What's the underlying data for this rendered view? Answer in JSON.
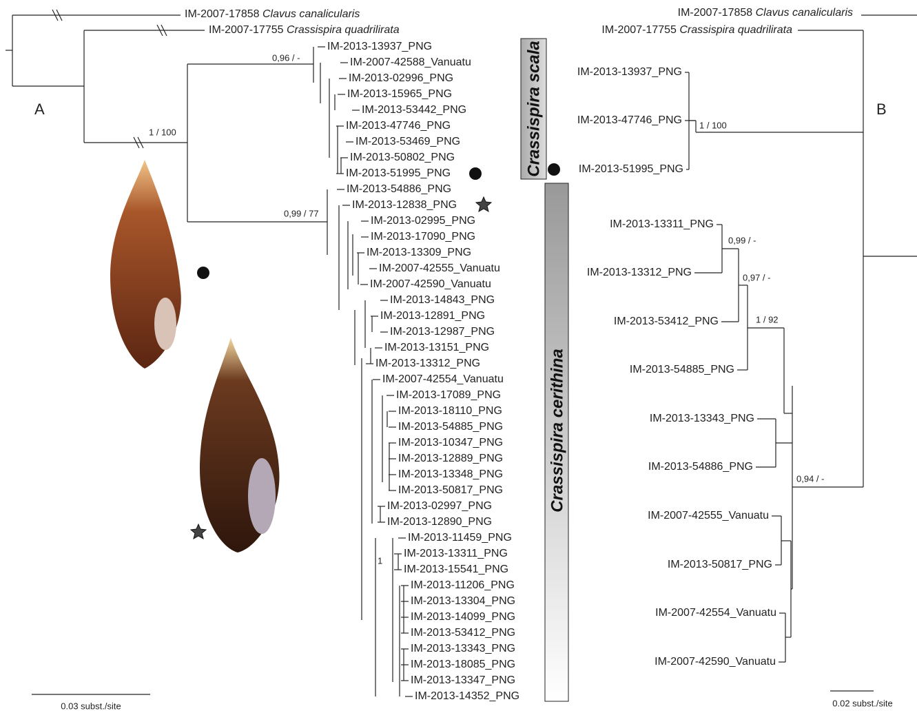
{
  "tree_a": {
    "label": "A",
    "outgroups": [
      {
        "id": "IM-2007-17858",
        "species": "Clavus canalicularis"
      },
      {
        "id": "IM-2007-17755",
        "species": "Crassispira quadrilirata"
      }
    ],
    "tips": [
      "IM-2013-13937_PNG",
      "IM-2007-42588_Vanuatu",
      "IM-2013-02996_PNG",
      "IM-2013-15965_PNG",
      "IM-2013-53442_PNG",
      "IM-2013-47746_PNG",
      "IM-2013-53469_PNG",
      "IM-2013-50802_PNG",
      "IM-2013-51995_PNG",
      "IM-2013-54886_PNG",
      "IM-2013-12838_PNG",
      "IM-2013-02995_PNG",
      "IM-2013-17090_PNG",
      "IM-2013-13309_PNG",
      "IM-2007-42555_Vanuatu",
      "IM-2007-42590_Vanuatu",
      "IM-2013-14843_PNG",
      "IM-2013-12891_PNG",
      "IM-2013-12987_PNG",
      "IM-2013-13151_PNG",
      "IM-2013-13312_PNG",
      "IM-2007-42554_Vanuatu",
      "IM-2013-17089_PNG",
      "IM-2013-18110_PNG",
      "IM-2013-54885_PNG",
      "IM-2013-10347_PNG",
      "IM-2013-12889_PNG",
      "IM-2013-13348_PNG",
      "IM-2013-50817_PNG",
      "IM-2013-02997_PNG",
      "IM-2013-12890_PNG",
      "IM-2013-11459_PNG",
      "IM-2013-13311_PNG",
      "IM-2013-15541_PNG",
      "IM-2013-11206_PNG",
      "IM-2013-13304_PNG",
      "IM-2013-14099_PNG",
      "IM-2013-53412_PNG",
      "IM-2013-13343_PNG",
      "IM-2013-18085_PNG",
      "IM-2013-13347_PNG",
      "IM-2013-14352_PNG"
    ],
    "supports": [
      "0,96 / -",
      "1 / 100",
      "0,99 / 77",
      "1"
    ],
    "scale_label": "0.03 subst./site"
  },
  "clade_labels": [
    "Crassispira scala",
    "Crassispira cerithina"
  ],
  "tree_b": {
    "label": "B",
    "outgroups": [
      {
        "id": "IM-2007-17858",
        "species": "Clavus canalicularis"
      },
      {
        "id": "IM-2007-17755",
        "species": "Crassispira quadrilirata"
      }
    ],
    "tips": [
      "IM-2013-13937_PNG",
      "IM-2013-47746_PNG",
      "IM-2013-51995_PNG",
      "IM-2013-13311_PNG",
      "IM-2013-13312_PNG",
      "IM-2013-53412_PNG",
      "IM-2013-54885_PNG",
      "IM-2013-13343_PNG",
      "IM-2013-54886_PNG",
      "IM-2007-42555_Vanuatu",
      "IM-2013-50817_PNG",
      "IM-2007-42554_Vanuatu",
      "IM-2007-42590_Vanuatu"
    ],
    "supports": [
      "1 / 100",
      "0,99 / -",
      "0,97 / -",
      "1 / 92",
      "0,94 / -"
    ],
    "scale_label": "0.02 subst./site"
  }
}
